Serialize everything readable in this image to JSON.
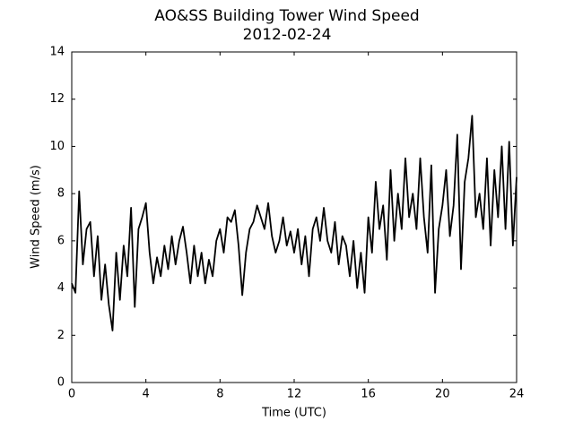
{
  "chart_data": {
    "type": "line",
    "title": "AO&SS Building Tower Wind Speed",
    "subtitle": "2012-02-24",
    "xlabel": "Time (UTC)",
    "ylabel": "Wind Speed (m/s)",
    "color": "#000000",
    "xlim": [
      0,
      24
    ],
    "xticks": [
      0,
      4,
      8,
      12,
      16,
      20,
      24
    ],
    "ylim": [
      0,
      14
    ],
    "yticks": [
      0,
      2,
      4,
      6,
      8,
      10,
      12,
      14
    ],
    "grid": false,
    "x": [
      0,
      0.2,
      0.4,
      0.6,
      0.8,
      1,
      1.2,
      1.4,
      1.6,
      1.8,
      2,
      2.2,
      2.4,
      2.6,
      2.8,
      3,
      3.2,
      3.4,
      3.6,
      3.8,
      4,
      4.2,
      4.4,
      4.6,
      4.8,
      5,
      5.2,
      5.4,
      5.6,
      5.8,
      6,
      6.2,
      6.4,
      6.6,
      6.8,
      7,
      7.2,
      7.4,
      7.6,
      7.8,
      8,
      8.2,
      8.4,
      8.6,
      8.8,
      9,
      9.2,
      9.4,
      9.6,
      9.8,
      10,
      10.2,
      10.4,
      10.6,
      10.8,
      11,
      11.2,
      11.4,
      11.6,
      11.8,
      12,
      12.2,
      12.4,
      12.6,
      12.8,
      13,
      13.2,
      13.4,
      13.6,
      13.8,
      14,
      14.2,
      14.4,
      14.6,
      14.8,
      15,
      15.2,
      15.4,
      15.6,
      15.8,
      16,
      16.2,
      16.4,
      16.6,
      16.8,
      17,
      17.2,
      17.4,
      17.6,
      17.8,
      18,
      18.2,
      18.4,
      18.6,
      18.8,
      19,
      19.2,
      19.4,
      19.6,
      19.8,
      20,
      20.2,
      20.4,
      20.6,
      20.8,
      21,
      21.2,
      21.4,
      21.6,
      21.8,
      22,
      22.2,
      22.4,
      22.6,
      22.8,
      23,
      23.2,
      23.4,
      23.6,
      23.8,
      24
    ],
    "values": [
      4.2,
      3.8,
      8.1,
      5.0,
      6.5,
      6.8,
      4.5,
      6.2,
      3.5,
      5.0,
      3.3,
      2.2,
      5.5,
      3.5,
      5.8,
      4.5,
      7.4,
      3.2,
      6.5,
      7.0,
      7.6,
      5.5,
      4.2,
      5.3,
      4.5,
      5.8,
      4.8,
      6.2,
      5.0,
      6.0,
      6.6,
      5.5,
      4.2,
      5.8,
      4.5,
      5.5,
      4.2,
      5.2,
      4.5,
      6.0,
      6.5,
      5.5,
      7.0,
      6.8,
      7.3,
      5.8,
      3.7,
      5.5,
      6.5,
      6.8,
      7.5,
      7.0,
      6.5,
      7.6,
      6.2,
      5.5,
      6.0,
      7.0,
      5.8,
      6.4,
      5.5,
      6.5,
      5.0,
      6.2,
      4.5,
      6.5,
      7.0,
      6.0,
      7.4,
      6.0,
      5.5,
      6.8,
      5.0,
      6.2,
      5.8,
      4.5,
      6.0,
      4.0,
      5.5,
      3.8,
      7.0,
      5.5,
      8.5,
      6.5,
      7.5,
      5.2,
      9.0,
      6.0,
      8.0,
      6.5,
      9.5,
      7.0,
      8.0,
      6.5,
      9.5,
      7.0,
      5.5,
      9.2,
      3.8,
      6.5,
      7.5,
      9.0,
      6.2,
      7.5,
      10.5,
      4.8,
      8.5,
      9.5,
      11.3,
      7.0,
      8.0,
      6.5,
      9.5,
      5.8,
      9.0,
      7.0,
      10.0,
      6.5,
      10.2,
      5.8,
      8.7
    ]
  }
}
